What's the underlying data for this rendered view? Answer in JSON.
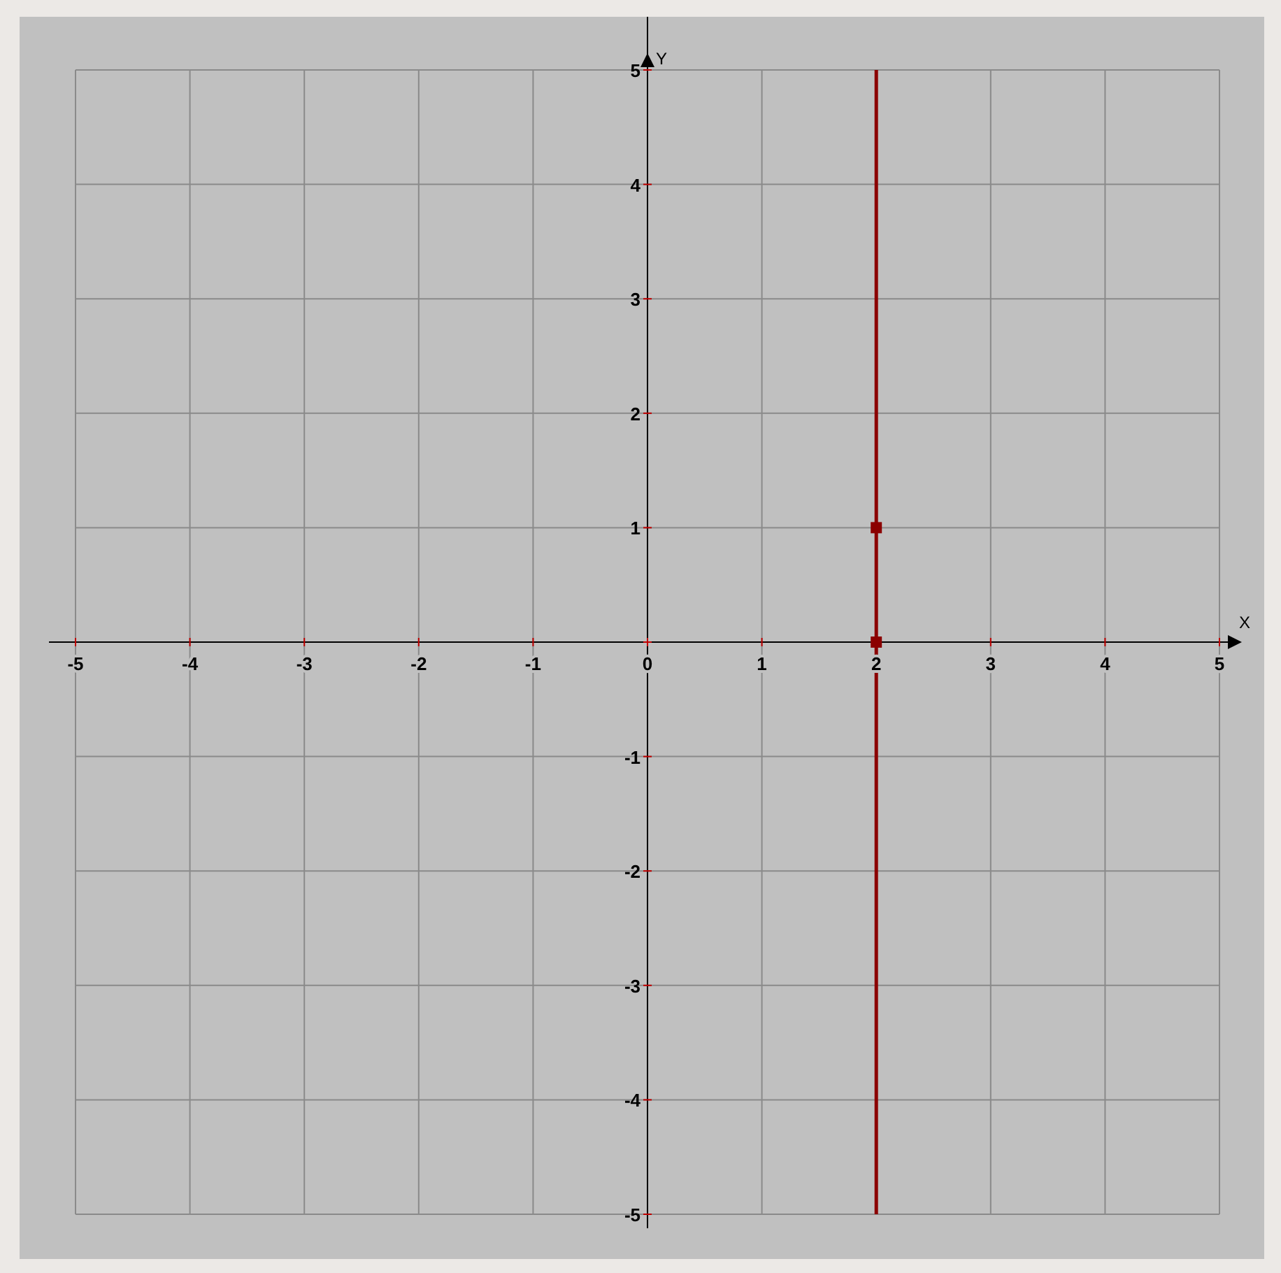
{
  "chart_data": {
    "type": "line",
    "xlabel": "X",
    "ylabel": "Y",
    "xlim": [
      -5,
      5
    ],
    "ylim": [
      -5,
      5
    ],
    "xticks": [
      -5,
      -4,
      -3,
      -2,
      -1,
      0,
      1,
      2,
      3,
      4,
      5
    ],
    "yticks": [
      -5,
      -4,
      -3,
      -2,
      -1,
      {
        "value": 0,
        "label": null
      },
      1,
      2,
      3,
      4,
      5
    ],
    "grid": true,
    "legend": false,
    "x": [
      2,
      2
    ],
    "series": [
      {
        "type": "line",
        "color": "#8b0000",
        "values": [
          -5,
          5
        ],
        "marker": "none"
      },
      {
        "type": "scatter",
        "color": "#8b0000",
        "values": [
          0,
          1
        ],
        "marker": "square"
      }
    ]
  }
}
